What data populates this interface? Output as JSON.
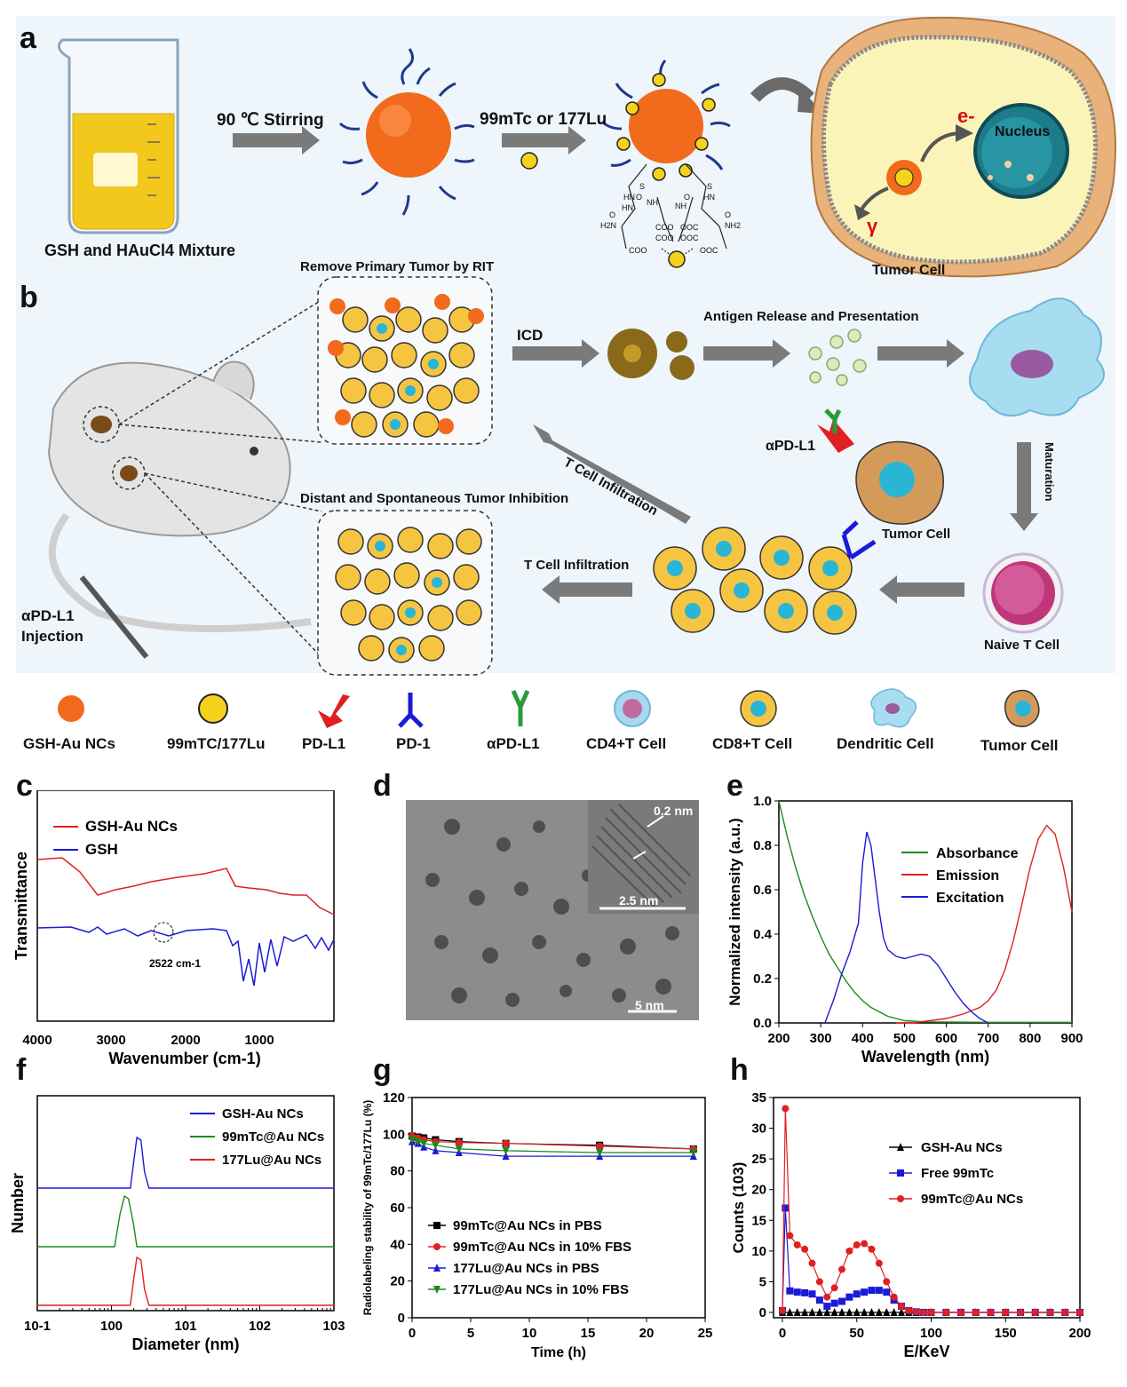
{
  "panels": {
    "a": "a",
    "b": "b",
    "c": "c",
    "d": "d",
    "e": "e",
    "f": "f",
    "g": "g",
    "h": "h"
  },
  "schematic_a": {
    "mixture_label": "GSH and HAuCl4 Mixture",
    "step1": "90 ℃ Stirring",
    "step2": "99mTc or 177Lu",
    "nucleus": "Nucleus",
    "electron": "e-",
    "gamma": "γ",
    "tumor_cell": "Tumor Cell",
    "chem_labels": [
      "S",
      "S",
      "O",
      "HN",
      "NH",
      "O",
      "NH",
      "HN",
      "O",
      "HN",
      "O",
      "H2N",
      "COO",
      "OOC",
      "NH2",
      "COO",
      "OOC",
      "COO",
      "OOC"
    ]
  },
  "schematic_b": {
    "remove_primary": "Remove Primary Tumor by RIT",
    "icd": "ICD",
    "antigen": "Antigen Release and Presentation",
    "maturation": "Maturation",
    "t_infiltration_diag": "T Cell Infiltration",
    "t_infiltration": "T Cell Infiltration",
    "apdl1": "αPD-L1",
    "tumor_cell": "Tumor Cell",
    "distant": "Distant and Spontaneous Tumor Inhibition",
    "injection_1": "αPD-L1",
    "injection_2": "Injection",
    "naive": "Naive T Cell"
  },
  "legend_row": [
    "GSH-Au NCs",
    "99mTC/177Lu",
    "PD-L1",
    "PD-1",
    "αPD-L1",
    "CD4+T Cell",
    "CD8+T Cell",
    "Dendritic Cell",
    "Tumor Cell"
  ],
  "colors": {
    "red": "#e02020",
    "blue": "#1a1ad8",
    "green": "#1a8a1a",
    "black": "#000000",
    "orange": "#f26a1b",
    "yellow": "#f5c542",
    "cyan": "#29b6d6"
  },
  "panel_c": {
    "legend": [
      "GSH-Au NCs",
      "GSH"
    ],
    "ylabel": "Transmittance",
    "xlabel": "Wavenumber (cm-1)",
    "ticks": [
      "4000",
      "3000",
      "2000",
      "1000"
    ],
    "annotation": "2522 cm-1"
  },
  "panel_d": {
    "scale_inset": "0.2 nm",
    "scale_inset_bar": "2.5 nm",
    "scale_main": "5 nm"
  },
  "chart_data": [
    {
      "panel": "e",
      "type": "line",
      "xlabel": "Wavelength (nm)",
      "ylabel": "Normalized intensity (a.u.)",
      "xlim": [
        200,
        900
      ],
      "ylim": [
        0,
        1.0
      ],
      "xticks": [
        "200",
        "300",
        "400",
        "500",
        "600",
        "700",
        "800",
        "900"
      ],
      "yticks": [
        "0.0",
        "0.2",
        "0.4",
        "0.6",
        "0.8",
        "1.0"
      ],
      "series": [
        {
          "name": "Absorbance",
          "color": "#1a8a1a",
          "x": [
            200,
            220,
            240,
            260,
            280,
            300,
            320,
            340,
            360,
            380,
            400,
            420,
            440,
            460,
            480,
            500,
            550,
            600,
            700,
            800,
            900
          ],
          "y": [
            1.0,
            0.84,
            0.7,
            0.58,
            0.48,
            0.39,
            0.31,
            0.25,
            0.19,
            0.14,
            0.1,
            0.07,
            0.05,
            0.03,
            0.02,
            0.01,
            0.005,
            0.004,
            0.003,
            0.003,
            0.003
          ]
        },
        {
          "name": "Emission",
          "color": "#e02020",
          "x": [
            480,
            520,
            560,
            600,
            640,
            680,
            700,
            720,
            740,
            760,
            780,
            800,
            820,
            840,
            860,
            880,
            900
          ],
          "y": [
            0.0,
            0.0,
            0.01,
            0.02,
            0.04,
            0.07,
            0.1,
            0.15,
            0.24,
            0.37,
            0.53,
            0.7,
            0.83,
            0.89,
            0.85,
            0.7,
            0.5
          ]
        },
        {
          "name": "Excitation",
          "color": "#1a1ad8",
          "x": [
            310,
            330,
            350,
            370,
            390,
            400,
            410,
            420,
            430,
            440,
            450,
            460,
            480,
            500,
            520,
            540,
            560,
            580,
            600,
            620,
            640,
            660,
            680,
            700
          ],
          "y": [
            0.0,
            0.1,
            0.22,
            0.32,
            0.45,
            0.72,
            0.86,
            0.8,
            0.65,
            0.5,
            0.38,
            0.33,
            0.3,
            0.29,
            0.3,
            0.31,
            0.3,
            0.26,
            0.2,
            0.14,
            0.09,
            0.05,
            0.02,
            0.0
          ]
        }
      ]
    },
    {
      "panel": "f",
      "type": "line",
      "xlabel": "Diameter (nm)",
      "ylabel": "Number",
      "xscale": "log",
      "xlim": [
        0.1,
        1000
      ],
      "xticks": [
        "10-1",
        "100",
        "101",
        "102",
        "103"
      ],
      "series": [
        {
          "name": "GSH-Au NCs",
          "color": "#1a1ad8",
          "offset": 2,
          "x": [
            0.1,
            1.8,
            2.0,
            2.2,
            2.5,
            2.8,
            3.2,
            1000
          ],
          "y": [
            0,
            0,
            0.5,
            0.95,
            0.9,
            0.3,
            0,
            0
          ]
        },
        {
          "name": "99mTc@Au NCs",
          "color": "#1a8a1a",
          "offset": 1,
          "x": [
            0.1,
            1.1,
            1.3,
            1.5,
            1.7,
            2.0,
            2.2,
            1000
          ],
          "y": [
            0,
            0,
            0.6,
            0.95,
            0.9,
            0.4,
            0,
            0
          ]
        },
        {
          "name": "177Lu@Au NCs",
          "color": "#e02020",
          "offset": 0,
          "x": [
            0.1,
            1.8,
            2.0,
            2.2,
            2.5,
            2.8,
            3.2,
            1000
          ],
          "y": [
            0,
            0,
            0.5,
            0.9,
            0.85,
            0.3,
            0,
            0
          ]
        }
      ]
    },
    {
      "panel": "g",
      "type": "line",
      "xlabel": "Time (h)",
      "ylabel": "Radiolabeling stability of 99mTc/177Lu (%)",
      "xlim": [
        0,
        25
      ],
      "ylim": [
        0,
        120
      ],
      "xticks": [
        "0",
        "5",
        "10",
        "15",
        "20",
        "25"
      ],
      "yticks": [
        "0",
        "20",
        "40",
        "60",
        "80",
        "100",
        "120"
      ],
      "series": [
        {
          "name": "99mTc@Au NCs in PBS",
          "color": "#000000",
          "marker": "square",
          "x": [
            0,
            0.5,
            1,
            2,
            4,
            8,
            16,
            24
          ],
          "y": [
            99,
            98.5,
            98,
            97,
            96,
            95,
            94,
            92
          ]
        },
        {
          "name": "99mTc@Au NCs in 10% FBS",
          "color": "#e02020",
          "marker": "circle",
          "x": [
            0,
            0.5,
            1,
            2,
            4,
            8,
            16,
            24
          ],
          "y": [
            99,
            98,
            97,
            96,
            95.5,
            95,
            93.5,
            92
          ]
        },
        {
          "name": "177Lu@Au NCs in PBS",
          "color": "#1a1ad8",
          "marker": "triangle",
          "x": [
            0,
            0.5,
            1,
            2,
            4,
            8,
            16,
            24
          ],
          "y": [
            96,
            95,
            93,
            91,
            90,
            88,
            88,
            88
          ]
        },
        {
          "name": "177Lu@Au NCs in 10% FBS",
          "color": "#1a8a1a",
          "marker": "triangle-down",
          "x": [
            0,
            0.5,
            1,
            2,
            4,
            8,
            16,
            24
          ],
          "y": [
            97,
            96,
            95,
            94,
            92,
            91,
            90,
            90
          ]
        }
      ]
    },
    {
      "panel": "h",
      "type": "line",
      "xlabel": "E/KeV",
      "ylabel": "Counts (103)",
      "xlim": [
        0,
        200
      ],
      "ylim": [
        0,
        35
      ],
      "xticks": [
        "0",
        "50",
        "100",
        "150",
        "200"
      ],
      "yticks": [
        "0",
        "5",
        "10",
        "15",
        "20",
        "25",
        "30",
        "35"
      ],
      "series": [
        {
          "name": "GSH-Au NCs",
          "color": "#000000",
          "marker": "triangle",
          "x": [
            0,
            5,
            10,
            15,
            20,
            25,
            30,
            35,
            40,
            45,
            50,
            55,
            60,
            65,
            70,
            75,
            80,
            85,
            90,
            95,
            100,
            110,
            120,
            130,
            140,
            150,
            160,
            170,
            180,
            190,
            200
          ],
          "y": [
            0,
            0,
            0,
            0,
            0,
            0,
            0,
            0,
            0,
            0,
            0,
            0,
            0,
            0,
            0,
            0,
            0,
            0,
            0,
            0,
            0,
            0,
            0,
            0,
            0,
            0,
            0,
            0,
            0,
            0,
            0
          ]
        },
        {
          "name": "Free 99mTc",
          "color": "#1a1ad8",
          "marker": "square",
          "x": [
            0,
            2,
            5,
            10,
            15,
            20,
            25,
            30,
            35,
            40,
            45,
            50,
            55,
            60,
            65,
            70,
            75,
            80,
            85,
            90,
            95,
            100,
            110,
            120,
            130,
            140,
            150,
            160,
            170,
            180,
            190,
            200
          ],
          "y": [
            0.3,
            17,
            3.5,
            3.3,
            3.2,
            3.0,
            2.0,
            1.0,
            1.5,
            1.8,
            2.5,
            3.0,
            3.3,
            3.6,
            3.6,
            3.3,
            2.0,
            1.0,
            0.3,
            0.1,
            0,
            0,
            0,
            0,
            0,
            0,
            0,
            0,
            0,
            0,
            0,
            0
          ]
        },
        {
          "name": "99mTc@Au NCs",
          "color": "#e02020",
          "marker": "circle",
          "x": [
            0,
            2,
            5,
            10,
            15,
            20,
            25,
            30,
            35,
            40,
            45,
            50,
            55,
            60,
            65,
            70,
            75,
            80,
            85,
            90,
            95,
            100,
            110,
            120,
            130,
            140,
            150,
            160,
            170,
            180,
            190,
            200
          ],
          "y": [
            0.3,
            33.2,
            12.5,
            11,
            10.3,
            8,
            5,
            2.5,
            4,
            7,
            10,
            11,
            11.2,
            10.3,
            8,
            5,
            2.5,
            1,
            0.3,
            0.1,
            0,
            0,
            0,
            0,
            0,
            0,
            0,
            0,
            0,
            0,
            0,
            0
          ]
        }
      ]
    }
  ]
}
